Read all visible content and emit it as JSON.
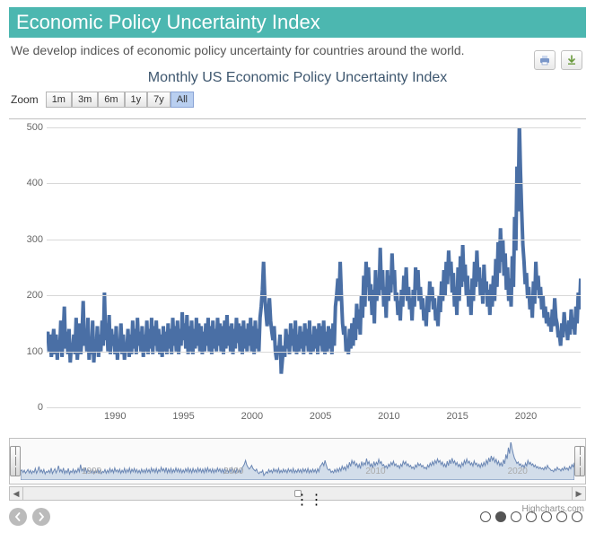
{
  "header": {
    "banner": "Economic Policy Uncertainty Index",
    "subtitle": "We develop indices of economic policy uncertainty for countries around the world.",
    "banner_bg": "#4cb7b0"
  },
  "chart": {
    "type": "line",
    "title": "Monthly US Economic Policy Uncertainty Index",
    "title_color": "#3e576f",
    "title_fontsize": 16,
    "line_color": "#4a6fa5",
    "line_width": 1.4,
    "background_color": "#ffffff",
    "grid_color": "#d8d8d8",
    "yaxis": {
      "min": 0,
      "max": 500,
      "tick_step": 100,
      "label_color": "#666666",
      "label_fontsize": 11
    },
    "xaxis": {
      "min": 1985,
      "max": 2024,
      "ticks": [
        1990,
        1995,
        2000,
        2005,
        2010,
        2015,
        2020
      ],
      "label_color": "#666666",
      "label_fontsize": 11
    },
    "zoom_label": "Zoom",
    "zoom_buttons": [
      {
        "label": "1m",
        "selected": false
      },
      {
        "label": "3m",
        "selected": false
      },
      {
        "label": "6m",
        "selected": false
      },
      {
        "label": "1y",
        "selected": false
      },
      {
        "label": "7y",
        "selected": false
      },
      {
        "label": "All",
        "selected": true
      }
    ],
    "export_icons": [
      "print",
      "download"
    ],
    "values": [
      120,
      135,
      100,
      130,
      90,
      115,
      140,
      95,
      130,
      85,
      120,
      100,
      155,
      90,
      125,
      180,
      105,
      135,
      95,
      140,
      80,
      115,
      100,
      130,
      95,
      160,
      85,
      120,
      150,
      95,
      130,
      190,
      110,
      140,
      100,
      160,
      85,
      125,
      95,
      155,
      80,
      120,
      100,
      145,
      90,
      130,
      100,
      155,
      110,
      205,
      120,
      150,
      100,
      165,
      95,
      140,
      110,
      130,
      95,
      145,
      85,
      120,
      100,
      150,
      95,
      130,
      85,
      115,
      100,
      140,
      90,
      130,
      95,
      155,
      105,
      140,
      95,
      160,
      110,
      135,
      100,
      145,
      90,
      130,
      100,
      155,
      95,
      140,
      105,
      160,
      95,
      145,
      110,
      155,
      100,
      140,
      95,
      130,
      90,
      145,
      100,
      135,
      95,
      150,
      105,
      140,
      95,
      160,
      110,
      145,
      100,
      155,
      95,
      140,
      110,
      170,
      120,
      150,
      105,
      165,
      95,
      145,
      100,
      155,
      95,
      140,
      105,
      160,
      110,
      150,
      100,
      145,
      95,
      135,
      100,
      150,
      110,
      160,
      100,
      145,
      95,
      155,
      105,
      140,
      100,
      160,
      110,
      150,
      100,
      145,
      95,
      155,
      105,
      165,
      110,
      145,
      100,
      150,
      95,
      140,
      105,
      160,
      115,
      150,
      100,
      145,
      95,
      155,
      105,
      140,
      100,
      150,
      110,
      160,
      100,
      145,
      95,
      155,
      105,
      140,
      100,
      160,
      180,
      210,
      260,
      200,
      170,
      145,
      165,
      195,
      155,
      135,
      120,
      145,
      100,
      85,
      110,
      100,
      130,
      60,
      85,
      110,
      90,
      140,
      105,
      130,
      95,
      150,
      110,
      140,
      100,
      155,
      95,
      130,
      100,
      145,
      105,
      135,
      95,
      150,
      110,
      140,
      100,
      155,
      95,
      130,
      100,
      145,
      105,
      140,
      95,
      150,
      110,
      145,
      100,
      155,
      95,
      135,
      100,
      145,
      105,
      140,
      95,
      150,
      110,
      180,
      200,
      230,
      190,
      260,
      200,
      150,
      130,
      145,
      100,
      120,
      95,
      140,
      105,
      150,
      110,
      160,
      120,
      185,
      140,
      175,
      130,
      200,
      160,
      235,
      180,
      260,
      215,
      250,
      190,
      220,
      165,
      210,
      150,
      245,
      190,
      230,
      200,
      285,
      210,
      245,
      180,
      215,
      160,
      245,
      190,
      235,
      205,
      275,
      220,
      245,
      190,
      205,
      165,
      190,
      155,
      210,
      180,
      235,
      200,
      250,
      190,
      215,
      175,
      195,
      155,
      210,
      180,
      250,
      210,
      245,
      190,
      215,
      175,
      195,
      155,
      175,
      145,
      200,
      170,
      225,
      190,
      215,
      175,
      195,
      155,
      170,
      145,
      200,
      170,
      225,
      190,
      245,
      200,
      260,
      220,
      280,
      235,
      260,
      205,
      240,
      180,
      215,
      165,
      250,
      190,
      270,
      215,
      290,
      225,
      255,
      200,
      235,
      180,
      210,
      165,
      230,
      190,
      260,
      215,
      280,
      225,
      250,
      200,
      230,
      185,
      255,
      205,
      225,
      180,
      210,
      165,
      220,
      180,
      235,
      190,
      265,
      215,
      295,
      240,
      320,
      260,
      300,
      235,
      275,
      210,
      250,
      190,
      230,
      180,
      270,
      215,
      340,
      280,
      430,
      350,
      510,
      420,
      350,
      290,
      260,
      220,
      240,
      195,
      215,
      175,
      200,
      160,
      225,
      185,
      260,
      210,
      235,
      195,
      215,
      175,
      200,
      160,
      180,
      150,
      170,
      145,
      160,
      135,
      175,
      145,
      195,
      160,
      150,
      125,
      130,
      110,
      150,
      125,
      170,
      140,
      145,
      120,
      155,
      130,
      175,
      140,
      160,
      130,
      180,
      150,
      205,
      175,
      230
    ],
    "x_start": 1985.0,
    "x_step_months": 1
  },
  "navigator": {
    "fill_color": "#b8c9df",
    "stroke_color": "#6b87b4",
    "bg_color": "#fafafa",
    "xticks": [
      1990,
      2000,
      2010,
      2020
    ]
  },
  "credit": "Highcharts.com",
  "pager": {
    "total": 7,
    "active_index": 1
  }
}
